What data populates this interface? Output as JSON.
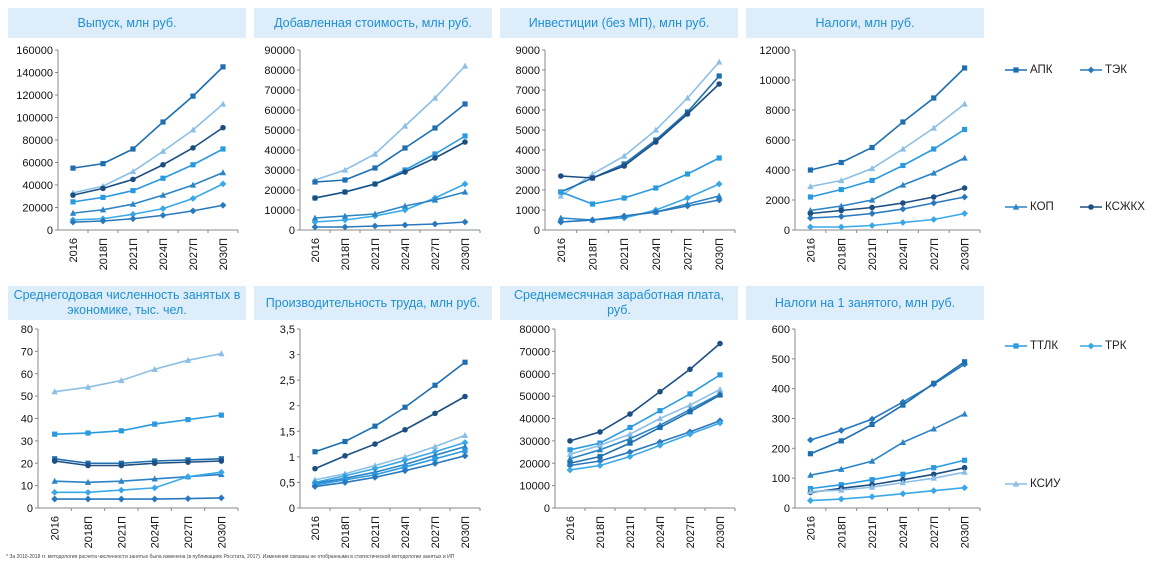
{
  "colors": {
    "title_bg": "#ddeefa",
    "title_text": "#1f8fd3",
    "series": {
      "АПК": "#1e6fb0",
      "ТЭК": "#2a79bf",
      "КОП": "#2b84c6",
      "КСЖКХ": "#1c4f82",
      "ТТЛК": "#2a9ae0",
      "ТРК": "#3aa8e8",
      "КСИУ": "#8cbfe6"
    }
  },
  "legend": [
    {
      "name": "АПК",
      "marker": "square"
    },
    {
      "name": "ТЭК",
      "marker": "diamond"
    },
    {
      "name": "КОП",
      "marker": "triangle"
    },
    {
      "name": "КСЖКХ",
      "marker": "circle"
    },
    {
      "name": "ТТЛК",
      "marker": "square"
    },
    {
      "name": "ТРК",
      "marker": "diamond"
    },
    {
      "name": "КСИУ",
      "marker": "triangle"
    }
  ],
  "footnote": "* За 2016-2018 гг. методология расчета численности занятых была изменена (в публикациях Росстата, 2017). Изменения связаны не отобранными в статистической методологии занятых и ИП",
  "chart_data": [
    {
      "type": "line",
      "title": "Выпуск, млн руб.",
      "categories": [
        "2016",
        "2018П",
        "2021П",
        "2024П",
        "2027П",
        "2030П"
      ],
      "ylim": [
        0,
        160000
      ],
      "yticks": [
        0,
        20000,
        40000,
        60000,
        80000,
        100000,
        120000,
        140000,
        160000
      ],
      "series": [
        {
          "name": "АПК",
          "values": [
            55000,
            59000,
            72000,
            96000,
            119000,
            145000
          ]
        },
        {
          "name": "КСИУ",
          "values": [
            33000,
            39000,
            52000,
            70000,
            89000,
            112000
          ]
        },
        {
          "name": "КСЖКХ",
          "values": [
            31000,
            37000,
            45000,
            58000,
            73000,
            91000
          ]
        },
        {
          "name": "ТТЛК",
          "values": [
            25000,
            29000,
            35000,
            46000,
            58000,
            72000
          ]
        },
        {
          "name": "КОП",
          "values": [
            15000,
            18000,
            23000,
            31000,
            40000,
            51000
          ]
        },
        {
          "name": "ТРК",
          "values": [
            9000,
            10000,
            14000,
            19000,
            28000,
            41000
          ]
        },
        {
          "name": "ТЭК",
          "values": [
            7000,
            8000,
            10000,
            13000,
            17000,
            22000
          ]
        }
      ]
    },
    {
      "type": "line",
      "title": "Добавленная стоимость, млн руб.",
      "categories": [
        "2016",
        "2018П",
        "2021П",
        "2024П",
        "2027П",
        "2030П"
      ],
      "ylim": [
        0,
        90000
      ],
      "yticks": [
        0,
        10000,
        20000,
        30000,
        40000,
        50000,
        60000,
        70000,
        80000,
        90000
      ],
      "series": [
        {
          "name": "КСИУ",
          "values": [
            25000,
            30000,
            38000,
            52000,
            66000,
            82000
          ]
        },
        {
          "name": "АПК",
          "values": [
            24000,
            25000,
            31000,
            41000,
            51000,
            63000
          ]
        },
        {
          "name": "ТТЛК",
          "values": [
            16000,
            19000,
            23000,
            30000,
            38000,
            47000
          ]
        },
        {
          "name": "КСЖКХ",
          "values": [
            16000,
            19000,
            23000,
            29000,
            36000,
            44000
          ]
        },
        {
          "name": "ТРК",
          "values": [
            4000,
            5000,
            7000,
            10000,
            16000,
            23000
          ]
        },
        {
          "name": "КОП",
          "values": [
            6000,
            7000,
            8000,
            12000,
            15000,
            19000
          ]
        },
        {
          "name": "ТЭК",
          "values": [
            1500,
            1500,
            2000,
            2500,
            3000,
            4000
          ]
        }
      ]
    },
    {
      "type": "line",
      "title": "Инвестиции (без МП), млн руб.",
      "categories": [
        "2016",
        "2018П",
        "2021П",
        "2024П",
        "2027П",
        "2030П"
      ],
      "ylim": [
        0,
        9000
      ],
      "yticks": [
        0,
        1000,
        2000,
        3000,
        4000,
        5000,
        6000,
        7000,
        8000,
        9000
      ],
      "series": [
        {
          "name": "КСИУ",
          "values": [
            1700,
            2800,
            3700,
            5000,
            6600,
            8400
          ]
        },
        {
          "name": "АПК",
          "values": [
            1900,
            2600,
            3300,
            4500,
            5900,
            7700
          ]
        },
        {
          "name": "КСЖКХ",
          "values": [
            2700,
            2600,
            3200,
            4400,
            5800,
            7300
          ]
        },
        {
          "name": "ТТЛК",
          "values": [
            1900,
            1300,
            1600,
            2100,
            2800,
            3600
          ]
        },
        {
          "name": "ТРК",
          "values": [
            400,
            500,
            600,
            1000,
            1600,
            2300
          ]
        },
        {
          "name": "КОП",
          "values": [
            600,
            500,
            700,
            900,
            1300,
            1700
          ]
        },
        {
          "name": "ТЭК",
          "values": [
            400,
            500,
            700,
            900,
            1200,
            1500
          ]
        }
      ]
    },
    {
      "type": "line",
      "title": "Налоги, млн руб.",
      "categories": [
        "2016",
        "2018П",
        "2021П",
        "2024П",
        "2027П",
        "2030П"
      ],
      "ylim": [
        0,
        12000
      ],
      "yticks": [
        0,
        2000,
        4000,
        6000,
        8000,
        10000,
        12000
      ],
      "series": [
        {
          "name": "АПК",
          "values": [
            4000,
            4500,
            5500,
            7200,
            8800,
            10800
          ]
        },
        {
          "name": "КСИУ",
          "values": [
            2900,
            3300,
            4100,
            5400,
            6800,
            8400
          ]
        },
        {
          "name": "ТТЛК",
          "values": [
            2200,
            2700,
            3300,
            4300,
            5400,
            6700
          ]
        },
        {
          "name": "КОП",
          "values": [
            1300,
            1600,
            2000,
            3000,
            3800,
            4800
          ]
        },
        {
          "name": "КСЖКХ",
          "values": [
            1100,
            1300,
            1500,
            1800,
            2200,
            2800
          ]
        },
        {
          "name": "ТЭК",
          "values": [
            800,
            900,
            1100,
            1400,
            1800,
            2200
          ]
        },
        {
          "name": "ТРК",
          "values": [
            200,
            200,
            300,
            500,
            700,
            1100
          ]
        }
      ]
    },
    {
      "type": "line",
      "title": "Среднегодовая численность занятых в экономике, тыс. чел.",
      "categories": [
        "2016",
        "2018П",
        "2021П",
        "2024П",
        "2027П",
        "2030П"
      ],
      "ylim": [
        0,
        80
      ],
      "yticks": [
        0,
        10,
        20,
        30,
        40,
        50,
        60,
        70,
        80
      ],
      "series": [
        {
          "name": "КСИУ",
          "values": [
            52,
            54,
            57,
            62,
            66,
            69
          ]
        },
        {
          "name": "ТТЛК",
          "values": [
            33,
            33.5,
            34.5,
            37.5,
            39.5,
            41.5
          ]
        },
        {
          "name": "АПК",
          "values": [
            22,
            20,
            20,
            21,
            21.5,
            22
          ]
        },
        {
          "name": "КСЖКХ",
          "values": [
            21,
            19,
            19,
            20,
            20.5,
            21
          ]
        },
        {
          "name": "КОП",
          "values": [
            12,
            11.5,
            12,
            13,
            14,
            15
          ]
        },
        {
          "name": "ТРК",
          "values": [
            7,
            7,
            8,
            9,
            14,
            16
          ]
        },
        {
          "name": "ТЭК",
          "values": [
            4,
            4,
            4,
            4,
            4.2,
            4.5
          ]
        }
      ]
    },
    {
      "type": "line",
      "title": "Производительность труда, млн руб.",
      "categories": [
        "2016",
        "2018П",
        "2021П",
        "2024П",
        "2027П",
        "2030П"
      ],
      "ylim": [
        0,
        3.5
      ],
      "yticks": [
        0,
        0.5,
        1,
        1.5,
        2,
        2.5,
        3,
        3.5
      ],
      "decimal_comma": true,
      "series": [
        {
          "name": "АПК",
          "values": [
            1.1,
            1.3,
            1.6,
            1.97,
            2.4,
            2.85
          ]
        },
        {
          "name": "КСЖКХ",
          "values": [
            0.77,
            1.02,
            1.25,
            1.53,
            1.85,
            2.18
          ]
        },
        {
          "name": "КСИУ",
          "values": [
            0.55,
            0.67,
            0.83,
            1.0,
            1.2,
            1.42
          ]
        },
        {
          "name": "ТРК",
          "values": [
            0.5,
            0.63,
            0.77,
            0.93,
            1.1,
            1.28
          ]
        },
        {
          "name": "КОП",
          "values": [
            0.48,
            0.58,
            0.7,
            0.85,
            1.03,
            1.2
          ]
        },
        {
          "name": "ТТЛК",
          "values": [
            0.45,
            0.55,
            0.65,
            0.8,
            0.96,
            1.12
          ]
        },
        {
          "name": "ТЭК",
          "values": [
            0.42,
            0.5,
            0.6,
            0.73,
            0.87,
            1.02
          ]
        }
      ]
    },
    {
      "type": "line",
      "title": "Среднемесячная заработная плата, руб.",
      "categories": [
        "2016",
        "2018П",
        "2021П",
        "2024П",
        "2027П",
        "2030П"
      ],
      "ylim": [
        0,
        80000
      ],
      "yticks": [
        0,
        10000,
        20000,
        30000,
        40000,
        50000,
        60000,
        70000,
        80000
      ],
      "series": [
        {
          "name": "КСЖКХ",
          "values": [
            30000,
            34000,
            42000,
            52000,
            62000,
            73500
          ]
        },
        {
          "name": "ТТЛК",
          "values": [
            26000,
            29000,
            36000,
            43500,
            51000,
            59500
          ]
        },
        {
          "name": "КСИУ",
          "values": [
            24000,
            28000,
            33000,
            40000,
            46000,
            53000
          ]
        },
        {
          "name": "КОП",
          "values": [
            22000,
            26000,
            31000,
            37000,
            44000,
            51000
          ]
        },
        {
          "name": "АПК",
          "values": [
            20000,
            23000,
            29000,
            36000,
            43000,
            50500
          ]
        },
        {
          "name": "ТЭК",
          "values": [
            19000,
            21000,
            25000,
            29500,
            34000,
            39000
          ]
        },
        {
          "name": "ТРК",
          "values": [
            17000,
            19000,
            23000,
            28000,
            33000,
            38000
          ]
        }
      ]
    },
    {
      "type": "line",
      "title": "Налоги на 1 занятого, млн руб.",
      "categories": [
        "2016",
        "2018П",
        "2021П",
        "2024П",
        "2027П",
        "2030П"
      ],
      "ylim": [
        0,
        600
      ],
      "yticks": [
        0,
        100,
        200,
        300,
        400,
        500,
        600
      ],
      "series": [
        {
          "name": "ТЭК",
          "values": [
            228,
            260,
            298,
            355,
            415,
            482
          ]
        },
        {
          "name": "АПК",
          "values": [
            182,
            225,
            280,
            345,
            418,
            490
          ]
        },
        {
          "name": "КОП",
          "values": [
            110,
            130,
            157,
            220,
            265,
            315
          ]
        },
        {
          "name": "ТТЛК",
          "values": [
            65,
            78,
            95,
            113,
            135,
            160
          ]
        },
        {
          "name": "КСЖКХ",
          "values": [
            52,
            66,
            78,
            95,
            113,
            135
          ]
        },
        {
          "name": "КСИУ",
          "values": [
            55,
            60,
            70,
            85,
            100,
            120
          ]
        },
        {
          "name": "ТРК",
          "values": [
            25,
            30,
            38,
            48,
            58,
            68
          ]
        }
      ]
    }
  ]
}
